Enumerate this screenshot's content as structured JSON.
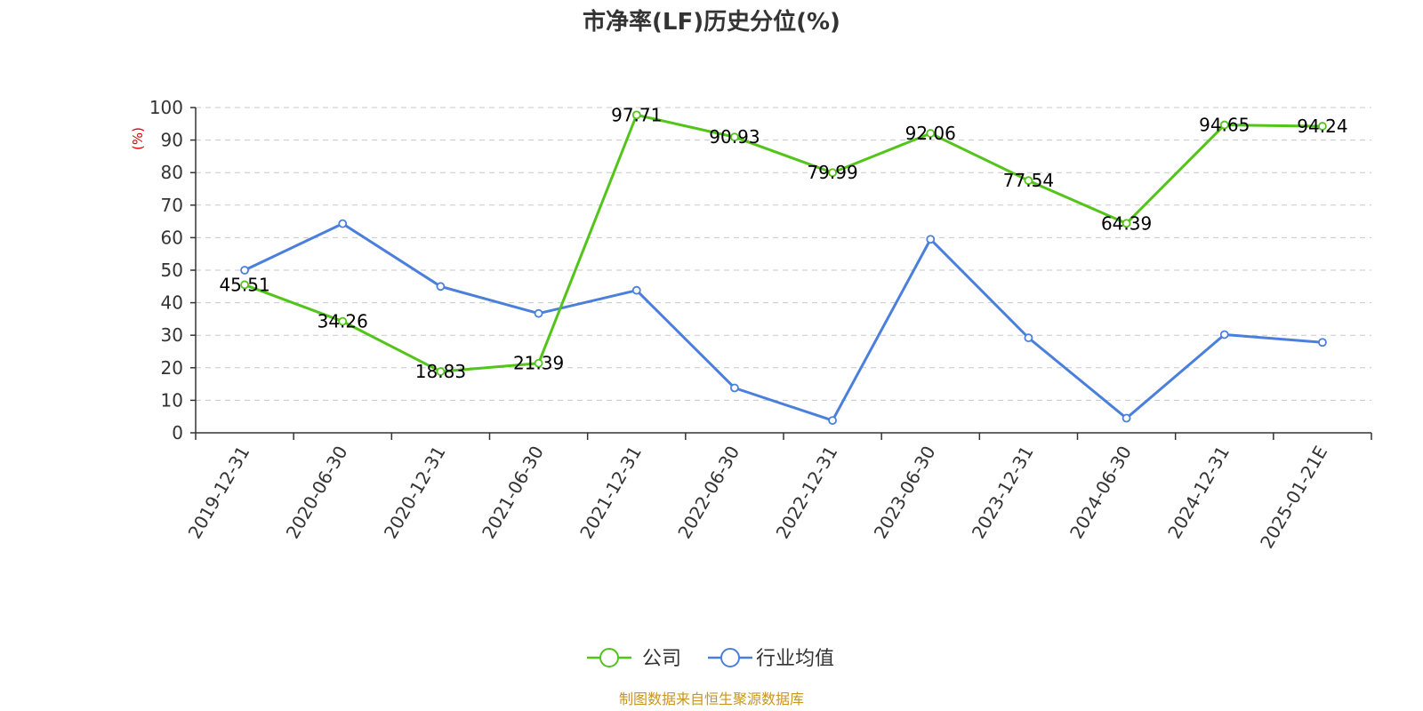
{
  "chart_data": {
    "type": "line",
    "title": "市净率(LF)历史分位(%)",
    "ylabel": "(%)",
    "ylim": [
      0,
      100
    ],
    "yticks": [
      0,
      10,
      20,
      30,
      40,
      50,
      60,
      70,
      80,
      90,
      100
    ],
    "grid": true,
    "legend_position": "bottom-center",
    "categories": [
      "2019-12-31",
      "2020-06-30",
      "2020-12-31",
      "2021-06-30",
      "2021-12-31",
      "2022-06-30",
      "2022-12-31",
      "2023-06-30",
      "2023-12-31",
      "2024-06-30",
      "2024-12-31",
      "2025-01-21E"
    ],
    "series": [
      {
        "name": "公司",
        "color": "#52c41a",
        "values": [
          45.51,
          34.26,
          18.83,
          21.39,
          97.71,
          90.93,
          79.99,
          92.06,
          77.54,
          64.39,
          94.65,
          94.24
        ],
        "show_labels": true
      },
      {
        "name": "行业均值",
        "color": "#4a7fdc",
        "values": [
          50.0,
          64.3,
          45.0,
          36.7,
          43.8,
          13.8,
          3.8,
          59.5,
          29.2,
          4.5,
          30.2,
          27.8
        ],
        "show_labels": false
      }
    ]
  },
  "source": "制图数据来自恒生聚源数据库"
}
